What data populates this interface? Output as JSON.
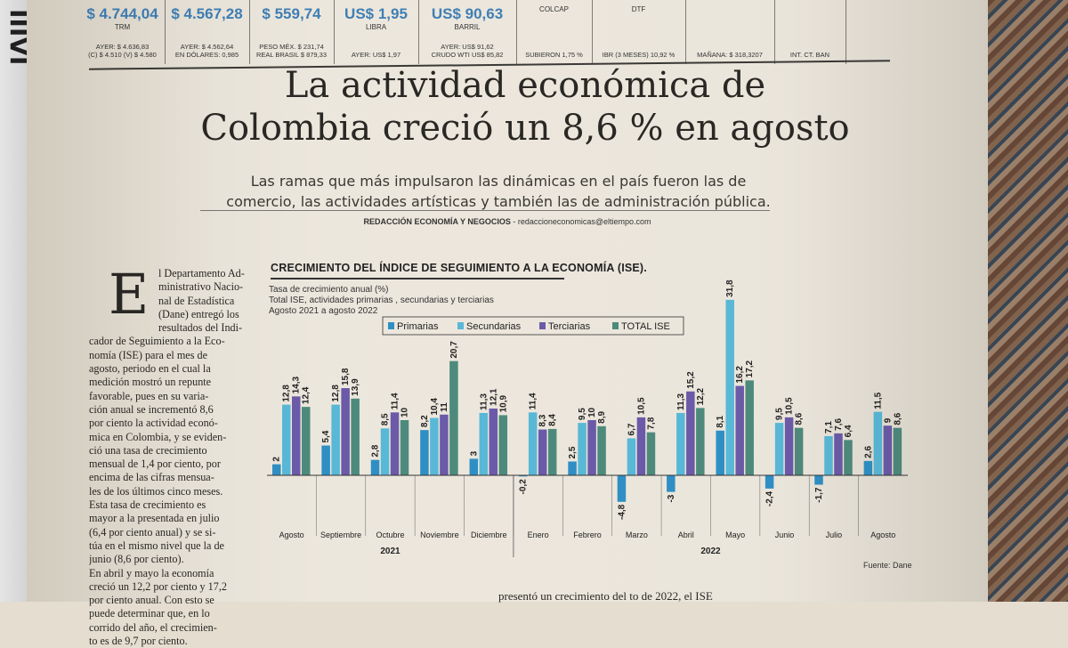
{
  "ticker": [
    {
      "value": "$ 4.744,04",
      "label": "TRM",
      "sub": [
        "AYER: $ 4.636,83",
        "(C) $ 4.510 (V) $ 4.580"
      ]
    },
    {
      "value": "$ 4.567,28",
      "label": "",
      "sub": [
        "AYER: $ 4.562,64",
        "EN DÓLARES: 0,985"
      ]
    },
    {
      "value": "$ 559,74",
      "label": "",
      "sub": [
        "PESO MÉX. $ 231,74",
        "REAL BRASIL $ 879,33"
      ]
    },
    {
      "value": "US$ 1,95",
      "label": "LIBRA",
      "sub": [
        "AYER: US$ 1,97"
      ]
    },
    {
      "value": "US$ 90,63",
      "label": "BARRIL",
      "sub": [
        "AYER: US$ 91,62",
        "CRUDO WTI US$ 85,82"
      ]
    },
    {
      "value": "",
      "label": "COLCAP",
      "sub": [
        "SUBIERON 1,75 %"
      ]
    },
    {
      "value": "",
      "label": "DTF",
      "sub": [
        "IBR (3 MESES) 10,92 %"
      ]
    },
    {
      "value": "",
      "label": "",
      "sub": [
        "MAÑANA: $ 318,3207"
      ]
    },
    {
      "value": "",
      "label": "",
      "sub": [
        "INT. CT. BAN"
      ]
    }
  ],
  "headline": [
    "La actividad económica de",
    "Colombia creció un 8,6 % en agosto"
  ],
  "subhead": [
    "Las ramas que más impulsaron las dinámicas en el país fueron las de",
    "comercio, las actividades artísticas y también las de administración pública."
  ],
  "byline": {
    "section": "REDACCIÓN ECONOMÍA Y NEGOCIOS",
    "email": " - redaccioneconomicas@eltiempo.com"
  },
  "column": {
    "dropcap": "E",
    "lines": [
      "l Departamento Ad-",
      "ministrativo Nacio-",
      "nal de Estadística",
      "(Dane) entregó los",
      "resultados del Indi-",
      "cador de Seguimiento a la Eco-",
      "nomía (ISE) para el mes de",
      "agosto, periodo en el cual la",
      "medición mostró un repunte",
      "favorable, pues en su varia-",
      "ción anual se incrementó 8,6",
      "por ciento la actividad econó-",
      "mica en Colombia, y se eviden-",
      "ció una tasa de crecimiento",
      "mensual de 1,4 por ciento, por",
      "encima de las cifras mensua-",
      "les de los últimos cinco meses.",
      "Esta tasa de crecimiento es",
      "mayor a la presentada en julio",
      "(6,4 por ciento anual) y se si-",
      "túa en el mismo nivel que la de",
      "junio (8,6 por ciento).",
      "En abril y mayo la economía",
      "creció un 12,2 por ciento y 17,2",
      "por ciento anual. Con esto se",
      "puede determinar que, en lo",
      "corrido del año, el crecimien-",
      "to es de 9,7 por ciento."
    ]
  },
  "footer_text": "presentó un crecimiento del    to de 2022, el ISE",
  "chart_data": {
    "type": "bar",
    "title": "CRECIMIENTO DEL ÍNDICE DE SEGUIMIENTO A LA ECONOMÍA (ISE).",
    "notes": [
      "Tasa de crecimiento anual (%)",
      "Total ISE, actividades primarias , secundarias y terciarias",
      "Agosto 2021 a agosto 2022"
    ],
    "categories": [
      "Agosto",
      "Septiembre",
      "Octubre",
      "Noviembre",
      "Diciembre",
      "Enero",
      "Febrero",
      "Marzo",
      "Abril",
      "Mayo",
      "Junio",
      "Julio",
      "Agosto"
    ],
    "year_groups": [
      {
        "label": "2021",
        "from": 0,
        "to": 4
      },
      {
        "label": "2022",
        "from": 5,
        "to": 12
      }
    ],
    "series": [
      {
        "name": "Primarias",
        "color": "#2f8fc4",
        "values": [
          2.0,
          5.4,
          2.8,
          8.2,
          3,
          -0.2,
          2.5,
          -4.8,
          -3.0,
          8.1,
          -2.4,
          -1.7,
          2.6
        ]
      },
      {
        "name": "Secundarias",
        "color": "#59b8d6",
        "values": [
          12.8,
          12.8,
          8.5,
          10.4,
          11.3,
          11.4,
          9.5,
          6.7,
          11.3,
          31.8,
          9.5,
          7.1,
          11.5
        ]
      },
      {
        "name": "Terciarias",
        "color": "#6b5aa8",
        "values": [
          14.3,
          15.8,
          11.4,
          11.0,
          12.1,
          8.3,
          10.0,
          10.5,
          15.2,
          16.2,
          10.5,
          7.6,
          9.0
        ]
      },
      {
        "name": "TOTAL ISE",
        "color": "#4e8a7c",
        "values": [
          12.4,
          13.9,
          10.0,
          20.7,
          10.9,
          8.4,
          8.9,
          7.8,
          12.2,
          17.2,
          8.6,
          6.4,
          8.6
        ]
      }
    ],
    "ylim": [
      -6,
      33
    ],
    "legend_position": "top",
    "source": "Fuente: Dane"
  }
}
